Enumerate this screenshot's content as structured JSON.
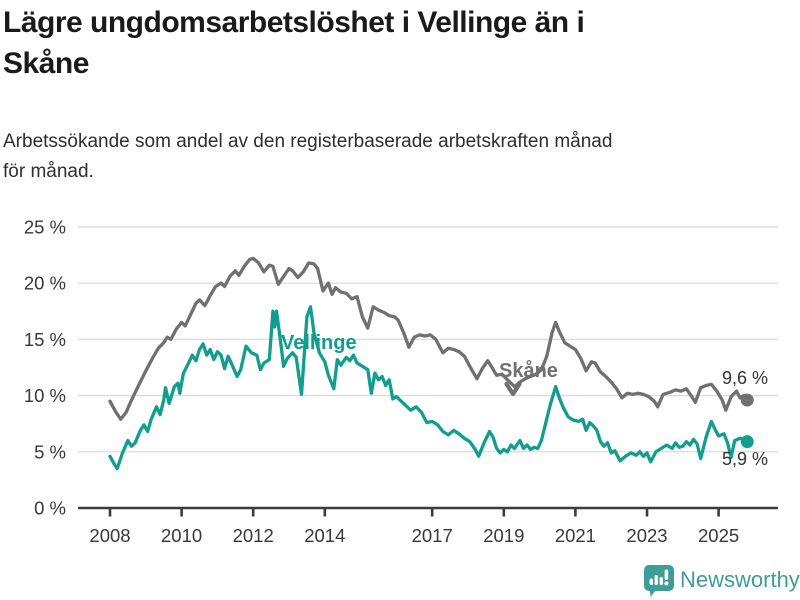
{
  "header": {
    "title_line1": "Lägre ungdomsarbetslöshet i Vellinge än i",
    "title_line2": "Skåne",
    "subtitle_line1": "Arbetssökande som andel av den registerbaserade arbetskraften månad",
    "subtitle_line2": "för månad."
  },
  "footer": {
    "brand": "Newsworthy",
    "logo_icon": "bar-chart-speech-bubble-icon"
  },
  "colors": {
    "vellinge_line": "#119E8F",
    "skane_line": "#6F6F74",
    "grid": "#DCDCDC",
    "axis": "#3C3C3C",
    "tick_text": "#383838",
    "value_text": "#333333",
    "brand_teal": "#3E9E97"
  },
  "chart_data": {
    "type": "line",
    "title": "Lägre ungdomsarbetslöshet i Vellinge än i Skåne",
    "xlabel": "",
    "ylabel": "",
    "ylim": [
      0,
      25
    ],
    "xlim": [
      2007.9,
      2026.1
    ],
    "grid": "horizontal",
    "legend": "inline-labels",
    "y_ticks": [
      {
        "label": "25 %",
        "value": 25
      },
      {
        "label": "20 %",
        "value": 20
      },
      {
        "label": "15 %",
        "value": 15
      },
      {
        "label": "10 %",
        "value": 10
      },
      {
        "label": "5 %",
        "value": 5
      },
      {
        "label": "0 %",
        "value": 0
      }
    ],
    "x_ticks": [
      {
        "label": "2008",
        "year": 2008
      },
      {
        "label": "2010",
        "year": 2010
      },
      {
        "label": "2012",
        "year": 2012
      },
      {
        "label": "2014",
        "year": 2014
      },
      {
        "label": "2017",
        "year": 2017
      },
      {
        "label": "2019",
        "year": 2019
      },
      {
        "label": "2021",
        "year": 2021
      },
      {
        "label": "2023",
        "year": 2023
      },
      {
        "label": "2025",
        "year": 2025
      }
    ],
    "series": [
      {
        "name": "Vellinge",
        "color": "#119E8F",
        "end_label": "5,9 %",
        "end_value": 5.9,
        "points": [
          [
            2008.0,
            4.6
          ],
          [
            2008.1,
            4.0
          ],
          [
            2008.2,
            3.5
          ],
          [
            2008.35,
            4.9
          ],
          [
            2008.5,
            6.0
          ],
          [
            2008.6,
            5.5
          ],
          [
            2008.7,
            5.8
          ],
          [
            2008.85,
            6.9
          ],
          [
            2008.95,
            7.4
          ],
          [
            2009.05,
            6.8
          ],
          [
            2009.15,
            7.9
          ],
          [
            2009.3,
            9.0
          ],
          [
            2009.4,
            8.3
          ],
          [
            2009.5,
            9.6
          ],
          [
            2009.55,
            10.7
          ],
          [
            2009.65,
            9.3
          ],
          [
            2009.8,
            10.8
          ],
          [
            2009.9,
            11.1
          ],
          [
            2009.95,
            10.2
          ],
          [
            2010.05,
            12.0
          ],
          [
            2010.15,
            12.6
          ],
          [
            2010.3,
            13.6
          ],
          [
            2010.4,
            13.1
          ],
          [
            2010.5,
            14.1
          ],
          [
            2010.6,
            14.6
          ],
          [
            2010.7,
            13.6
          ],
          [
            2010.8,
            14.1
          ],
          [
            2010.9,
            13.2
          ],
          [
            2011.0,
            13.9
          ],
          [
            2011.1,
            13.6
          ],
          [
            2011.2,
            12.4
          ],
          [
            2011.3,
            13.5
          ],
          [
            2011.4,
            12.8
          ],
          [
            2011.55,
            11.7
          ],
          [
            2011.65,
            12.3
          ],
          [
            2011.8,
            14.4
          ],
          [
            2011.95,
            13.8
          ],
          [
            2012.1,
            13.6
          ],
          [
            2012.2,
            12.3
          ],
          [
            2012.3,
            12.9
          ],
          [
            2012.45,
            13.2
          ],
          [
            2012.55,
            17.5
          ],
          [
            2012.6,
            16.1
          ],
          [
            2012.65,
            17.5
          ],
          [
            2012.75,
            15.2
          ],
          [
            2012.85,
            12.6
          ],
          [
            2012.95,
            13.3
          ],
          [
            2013.1,
            13.8
          ],
          [
            2013.2,
            13.4
          ],
          [
            2013.35,
            10.1
          ],
          [
            2013.5,
            17.0
          ],
          [
            2013.6,
            17.9
          ],
          [
            2013.7,
            15.5
          ],
          [
            2013.85,
            13.8
          ],
          [
            2014.0,
            13.0
          ],
          [
            2014.1,
            11.8
          ],
          [
            2014.25,
            10.6
          ],
          [
            2014.35,
            13.2
          ],
          [
            2014.45,
            12.7
          ],
          [
            2014.6,
            13.4
          ],
          [
            2014.7,
            13.1
          ],
          [
            2014.8,
            13.6
          ],
          [
            2014.9,
            12.9
          ],
          [
            2015.05,
            12.6
          ],
          [
            2015.2,
            12.3
          ],
          [
            2015.3,
            10.2
          ],
          [
            2015.4,
            12.0
          ],
          [
            2015.5,
            11.4
          ],
          [
            2015.6,
            11.7
          ],
          [
            2015.7,
            10.9
          ],
          [
            2015.8,
            11.4
          ],
          [
            2015.9,
            9.7
          ],
          [
            2016.0,
            9.9
          ],
          [
            2016.2,
            9.3
          ],
          [
            2016.4,
            8.7
          ],
          [
            2016.55,
            9.0
          ],
          [
            2016.7,
            8.5
          ],
          [
            2016.85,
            7.6
          ],
          [
            2017.0,
            7.7
          ],
          [
            2017.15,
            7.4
          ],
          [
            2017.3,
            6.8
          ],
          [
            2017.45,
            6.5
          ],
          [
            2017.6,
            6.9
          ],
          [
            2017.75,
            6.6
          ],
          [
            2017.9,
            6.2
          ],
          [
            2018.05,
            5.9
          ],
          [
            2018.2,
            5.2
          ],
          [
            2018.3,
            4.6
          ],
          [
            2018.45,
            5.8
          ],
          [
            2018.6,
            6.8
          ],
          [
            2018.7,
            6.3
          ],
          [
            2018.8,
            5.3
          ],
          [
            2018.9,
            4.9
          ],
          [
            2019.0,
            5.2
          ],
          [
            2019.1,
            5.0
          ],
          [
            2019.2,
            5.6
          ],
          [
            2019.3,
            5.3
          ],
          [
            2019.45,
            6.0
          ],
          [
            2019.55,
            5.3
          ],
          [
            2019.65,
            5.6
          ],
          [
            2019.75,
            5.2
          ],
          [
            2019.85,
            5.4
          ],
          [
            2019.95,
            5.3
          ],
          [
            2020.05,
            6.0
          ],
          [
            2020.15,
            7.3
          ],
          [
            2020.3,
            9.2
          ],
          [
            2020.45,
            10.8
          ],
          [
            2020.55,
            9.8
          ],
          [
            2020.65,
            9.0
          ],
          [
            2020.8,
            8.1
          ],
          [
            2020.95,
            7.8
          ],
          [
            2021.1,
            7.7
          ],
          [
            2021.2,
            7.9
          ],
          [
            2021.3,
            6.9
          ],
          [
            2021.4,
            7.6
          ],
          [
            2021.5,
            7.3
          ],
          [
            2021.6,
            6.9
          ],
          [
            2021.7,
            5.9
          ],
          [
            2021.8,
            5.5
          ],
          [
            2021.9,
            5.8
          ],
          [
            2022.0,
            4.9
          ],
          [
            2022.1,
            5.1
          ],
          [
            2022.25,
            4.2
          ],
          [
            2022.4,
            4.6
          ],
          [
            2022.55,
            4.9
          ],
          [
            2022.7,
            4.7
          ],
          [
            2022.8,
            5.0
          ],
          [
            2022.9,
            4.6
          ],
          [
            2023.0,
            4.9
          ],
          [
            2023.1,
            4.1
          ],
          [
            2023.25,
            5.0
          ],
          [
            2023.4,
            5.3
          ],
          [
            2023.55,
            5.6
          ],
          [
            2023.7,
            5.3
          ],
          [
            2023.8,
            5.8
          ],
          [
            2023.9,
            5.4
          ],
          [
            2024.0,
            5.5
          ],
          [
            2024.1,
            5.9
          ],
          [
            2024.2,
            5.6
          ],
          [
            2024.3,
            6.1
          ],
          [
            2024.4,
            5.7
          ],
          [
            2024.5,
            4.4
          ],
          [
            2024.65,
            6.3
          ],
          [
            2024.8,
            7.7
          ],
          [
            2024.9,
            7.0
          ],
          [
            2025.0,
            6.4
          ],
          [
            2025.15,
            6.6
          ],
          [
            2025.25,
            5.8
          ],
          [
            2025.35,
            4.5
          ],
          [
            2025.45,
            6.0
          ],
          [
            2025.6,
            6.2
          ],
          [
            2025.7,
            6.1
          ],
          [
            2025.8,
            5.9
          ]
        ]
      },
      {
        "name": "Skåne",
        "color": "#6F6F74",
        "end_label": "9,6 %",
        "end_value": 9.6,
        "points": [
          [
            2008.0,
            9.5
          ],
          [
            2008.15,
            8.6
          ],
          [
            2008.3,
            7.9
          ],
          [
            2008.45,
            8.5
          ],
          [
            2008.6,
            9.6
          ],
          [
            2008.8,
            10.9
          ],
          [
            2009.0,
            12.2
          ],
          [
            2009.2,
            13.4
          ],
          [
            2009.35,
            14.2
          ],
          [
            2009.5,
            14.7
          ],
          [
            2009.6,
            15.2
          ],
          [
            2009.7,
            15.0
          ],
          [
            2009.85,
            15.9
          ],
          [
            2010.0,
            16.5
          ],
          [
            2010.1,
            16.2
          ],
          [
            2010.25,
            17.2
          ],
          [
            2010.4,
            18.2
          ],
          [
            2010.5,
            18.5
          ],
          [
            2010.65,
            18.0
          ],
          [
            2010.8,
            18.9
          ],
          [
            2010.95,
            19.7
          ],
          [
            2011.1,
            20.0
          ],
          [
            2011.2,
            19.7
          ],
          [
            2011.35,
            20.6
          ],
          [
            2011.5,
            21.1
          ],
          [
            2011.6,
            20.7
          ],
          [
            2011.75,
            21.5
          ],
          [
            2011.9,
            22.1
          ],
          [
            2012.0,
            22.2
          ],
          [
            2012.15,
            21.8
          ],
          [
            2012.3,
            21.0
          ],
          [
            2012.45,
            21.6
          ],
          [
            2012.55,
            21.5
          ],
          [
            2012.7,
            19.9
          ],
          [
            2012.85,
            20.6
          ],
          [
            2013.0,
            21.3
          ],
          [
            2013.1,
            21.1
          ],
          [
            2013.25,
            20.5
          ],
          [
            2013.4,
            21.0
          ],
          [
            2013.55,
            21.8
          ],
          [
            2013.7,
            21.7
          ],
          [
            2013.8,
            21.3
          ],
          [
            2013.95,
            19.3
          ],
          [
            2014.1,
            20.0
          ],
          [
            2014.2,
            19.0
          ],
          [
            2014.3,
            19.6
          ],
          [
            2014.45,
            19.2
          ],
          [
            2014.6,
            19.1
          ],
          [
            2014.75,
            18.6
          ],
          [
            2014.9,
            18.8
          ],
          [
            2015.05,
            17.0
          ],
          [
            2015.2,
            16.0
          ],
          [
            2015.35,
            17.9
          ],
          [
            2015.5,
            17.6
          ],
          [
            2015.65,
            17.4
          ],
          [
            2015.8,
            17.1
          ],
          [
            2015.95,
            17.0
          ],
          [
            2016.05,
            16.7
          ],
          [
            2016.2,
            15.6
          ],
          [
            2016.35,
            14.3
          ],
          [
            2016.5,
            15.2
          ],
          [
            2016.65,
            15.4
          ],
          [
            2016.8,
            15.3
          ],
          [
            2016.95,
            15.4
          ],
          [
            2017.1,
            15.0
          ],
          [
            2017.3,
            13.8
          ],
          [
            2017.45,
            14.2
          ],
          [
            2017.6,
            14.1
          ],
          [
            2017.75,
            13.9
          ],
          [
            2017.9,
            13.5
          ],
          [
            2018.05,
            12.6
          ],
          [
            2018.25,
            11.5
          ],
          [
            2018.4,
            12.4
          ],
          [
            2018.55,
            13.1
          ],
          [
            2018.65,
            12.6
          ],
          [
            2018.8,
            11.8
          ],
          [
            2018.95,
            11.9
          ],
          [
            2019.1,
            11.4
          ],
          [
            2019.3,
            10.8
          ],
          [
            2019.45,
            11.2
          ],
          [
            2019.6,
            11.5
          ],
          [
            2019.75,
            11.7
          ],
          [
            2019.9,
            11.9
          ],
          [
            2020.05,
            12.3
          ],
          [
            2020.2,
            13.5
          ],
          [
            2020.35,
            15.6
          ],
          [
            2020.45,
            16.5
          ],
          [
            2020.55,
            15.7
          ],
          [
            2020.7,
            14.7
          ],
          [
            2020.85,
            14.4
          ],
          [
            2021.0,
            14.1
          ],
          [
            2021.15,
            13.3
          ],
          [
            2021.3,
            12.2
          ],
          [
            2021.45,
            13.0
          ],
          [
            2021.55,
            12.9
          ],
          [
            2021.7,
            12.1
          ],
          [
            2021.85,
            11.7
          ],
          [
            2022.0,
            11.2
          ],
          [
            2022.15,
            10.6
          ],
          [
            2022.3,
            9.8
          ],
          [
            2022.45,
            10.2
          ],
          [
            2022.6,
            10.1
          ],
          [
            2022.75,
            10.2
          ],
          [
            2022.9,
            10.1
          ],
          [
            2023.05,
            9.9
          ],
          [
            2023.2,
            9.5
          ],
          [
            2023.3,
            9.0
          ],
          [
            2023.45,
            10.1
          ],
          [
            2023.65,
            10.3
          ],
          [
            2023.8,
            10.5
          ],
          [
            2023.95,
            10.4
          ],
          [
            2024.1,
            10.6
          ],
          [
            2024.25,
            9.9
          ],
          [
            2024.35,
            9.4
          ],
          [
            2024.5,
            10.7
          ],
          [
            2024.65,
            10.9
          ],
          [
            2024.8,
            11.0
          ],
          [
            2024.95,
            10.4
          ],
          [
            2025.1,
            9.6
          ],
          [
            2025.2,
            8.7
          ],
          [
            2025.35,
            9.9
          ],
          [
            2025.5,
            10.4
          ],
          [
            2025.6,
            9.8
          ],
          [
            2025.7,
            10.0
          ],
          [
            2025.8,
            9.6
          ]
        ]
      }
    ]
  }
}
